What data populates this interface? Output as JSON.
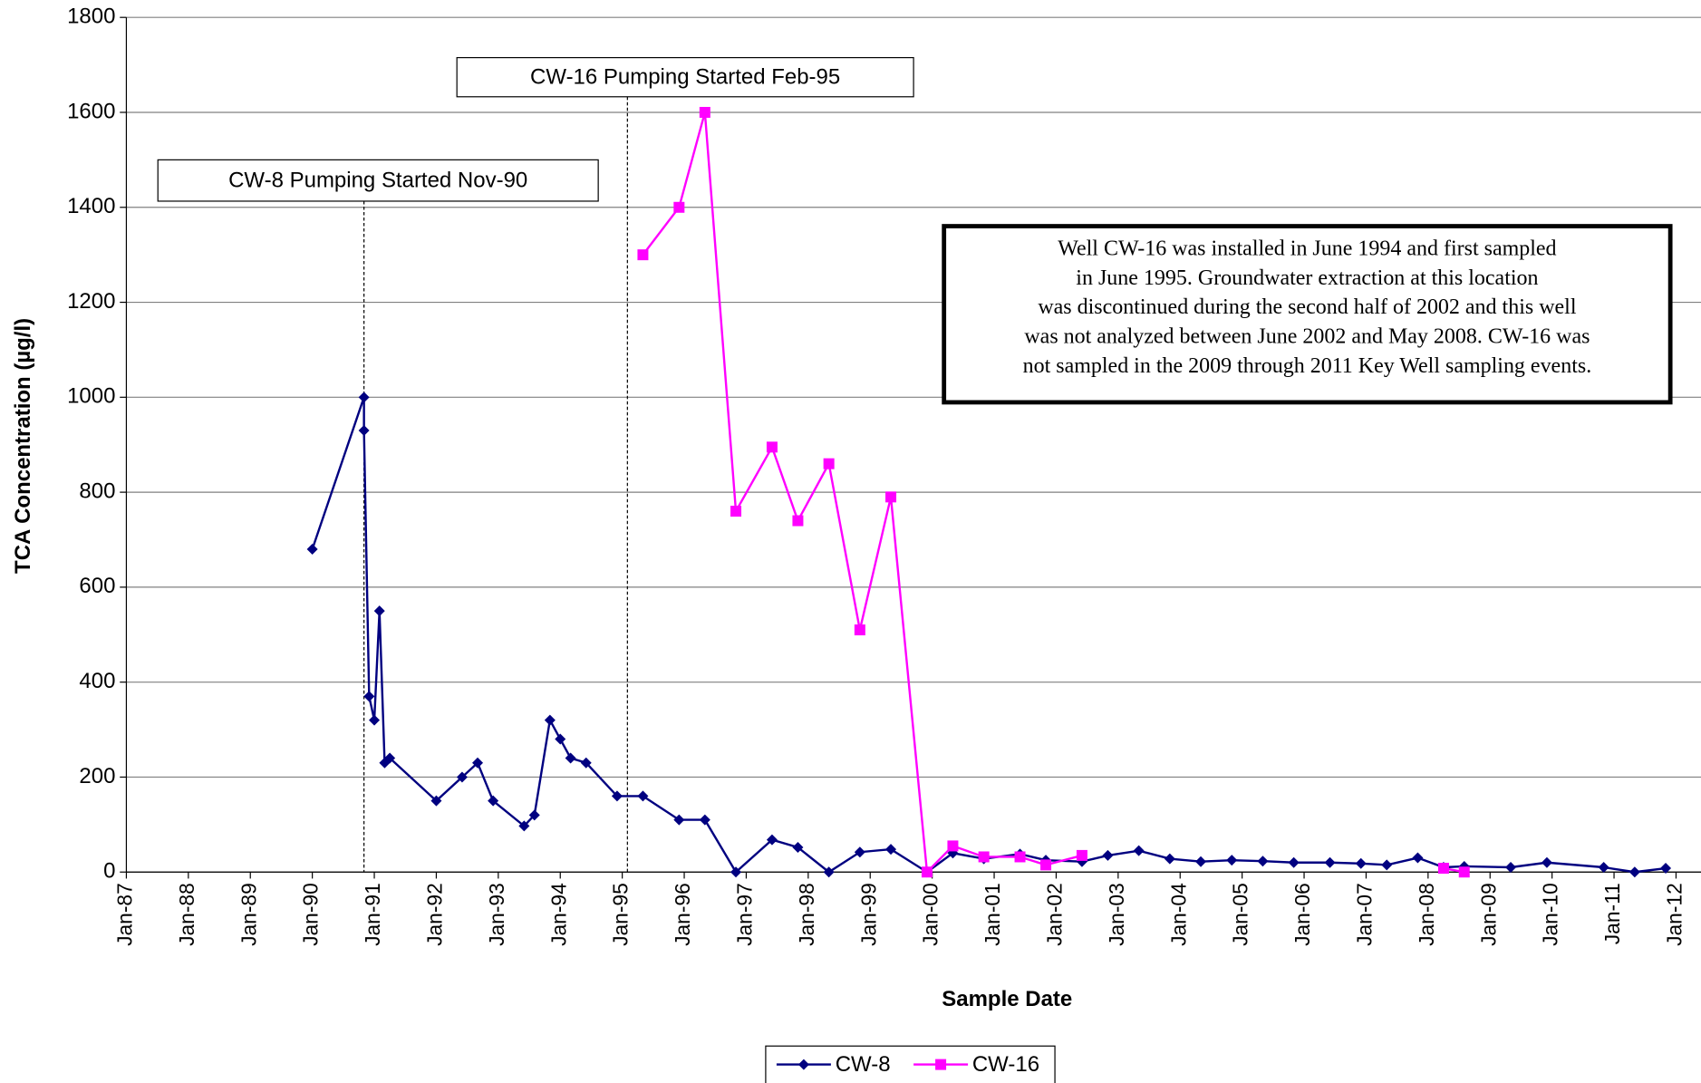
{
  "chart_data": {
    "type": "line",
    "x_label": "Sample Date",
    "y_label": "TCA Concentration (µg/l)",
    "xlim": [
      "1987-01",
      "2012-06"
    ],
    "xticks": [
      {
        "value": "1987-01",
        "label": "Jan-87"
      },
      {
        "value": "1988-01",
        "label": "Jan-88"
      },
      {
        "value": "1989-01",
        "label": "Jan-89"
      },
      {
        "value": "1990-01",
        "label": "Jan-90"
      },
      {
        "value": "1991-01",
        "label": "Jan-91"
      },
      {
        "value": "1992-01",
        "label": "Jan-92"
      },
      {
        "value": "1993-01",
        "label": "Jan-93"
      },
      {
        "value": "1994-01",
        "label": "Jan-94"
      },
      {
        "value": "1995-01",
        "label": "Jan-95"
      },
      {
        "value": "1996-01",
        "label": "Jan-96"
      },
      {
        "value": "1997-01",
        "label": "Jan-97"
      },
      {
        "value": "1998-01",
        "label": "Jan-98"
      },
      {
        "value": "1999-01",
        "label": "Jan-99"
      },
      {
        "value": "2000-01",
        "label": "Jan-00"
      },
      {
        "value": "2001-01",
        "label": "Jan-01"
      },
      {
        "value": "2002-01",
        "label": "Jan-02"
      },
      {
        "value": "2003-01",
        "label": "Jan-03"
      },
      {
        "value": "2004-01",
        "label": "Jan-04"
      },
      {
        "value": "2005-01",
        "label": "Jan-05"
      },
      {
        "value": "2006-01",
        "label": "Jan-06"
      },
      {
        "value": "2007-01",
        "label": "Jan-07"
      },
      {
        "value": "2008-01",
        "label": "Jan-08"
      },
      {
        "value": "2009-01",
        "label": "Jan-09"
      },
      {
        "value": "2010-01",
        "label": "Jan-10"
      },
      {
        "value": "2011-01",
        "label": "Jan-11"
      },
      {
        "value": "2012-01",
        "label": "Jan-12"
      }
    ],
    "ylim": [
      0,
      1800
    ],
    "yticks": [
      0,
      200,
      400,
      600,
      800,
      1000,
      1200,
      1400,
      1600,
      1800
    ],
    "grid": true,
    "legend": "bottom",
    "series": [
      {
        "name": "CW-8",
        "color": "#000080",
        "marker": "diamond",
        "x": [
          "1990-01",
          "1990-11",
          "1990-11",
          "1990-12",
          "1991-01",
          "1991-02",
          "1991-03",
          "1991-04",
          "1992-01",
          "1992-06",
          "1992-09",
          "1992-12",
          "1993-06",
          "1993-08",
          "1993-11",
          "1994-01",
          "1994-03",
          "1994-06",
          "1994-12",
          "1995-05",
          "1995-12",
          "1996-05",
          "1996-11",
          "1997-06",
          "1997-11",
          "1998-05",
          "1998-11",
          "1999-05",
          "1999-12",
          "2000-05",
          "2000-11",
          "2001-06",
          "2001-11",
          "2002-06",
          "2002-11",
          "2003-05",
          "2003-11",
          "2004-05",
          "2004-11",
          "2005-05",
          "2005-11",
          "2006-06",
          "2006-12",
          "2007-05",
          "2007-11",
          "2008-04",
          "2008-08",
          "2009-05",
          "2009-12",
          "2010-11",
          "2011-05",
          "2011-11"
        ],
        "values": [
          680,
          1000,
          930,
          370,
          320,
          550,
          230,
          240,
          150,
          200,
          230,
          150,
          97,
          120,
          320,
          280,
          240,
          230,
          160,
          160,
          110,
          110,
          0,
          68,
          52,
          0,
          42,
          48,
          0,
          40,
          28,
          38,
          25,
          22,
          35,
          45,
          28,
          22,
          25,
          23,
          20,
          20,
          18,
          15,
          30,
          10,
          12,
          10,
          20,
          10,
          0,
          8
        ]
      },
      {
        "name": "CW-16",
        "color": "#ff00ff",
        "marker": "square",
        "x": [
          "1995-05",
          "1995-12",
          "1996-05",
          "1996-11",
          "1997-06",
          "1997-11",
          "1998-05",
          "1998-11",
          "1999-05",
          "1999-12",
          "2000-05",
          "2000-11",
          "2001-06",
          "2001-11",
          "2002-06",
          null,
          "2008-04",
          "2008-08"
        ],
        "values": [
          1300,
          1400,
          1600,
          760,
          895,
          740,
          860,
          510,
          790,
          0,
          55,
          32,
          32,
          15,
          35,
          null,
          8,
          0
        ]
      }
    ],
    "annotations": [
      {
        "text": "CW-8 Pumping Started  Nov-90",
        "x": "1990-11"
      },
      {
        "text": "CW-16 Pumping Started Feb-95",
        "x": "1995-02"
      }
    ],
    "note": [
      "Well CW-16 was installed in June 1994 and first sampled",
      "in June 1995.  Groundwater extraction at this location",
      "was discontinued during the second half of 2002 and this well",
      "was not analyzed between June 2002 and May 2008.  CW-16 was",
      "not sampled in the 2009 through 2011 Key Well sampling events."
    ]
  }
}
